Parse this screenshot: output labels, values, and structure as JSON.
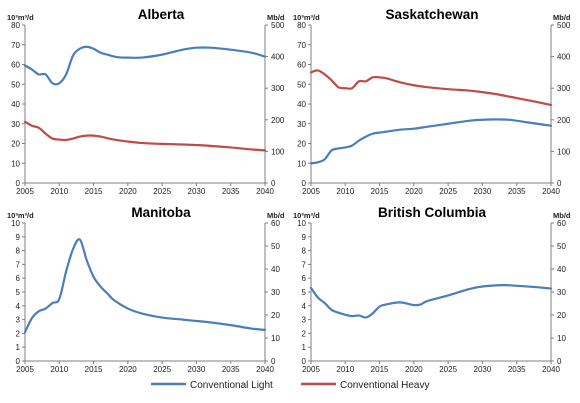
{
  "chart_data": [
    {
      "type": "line",
      "title": "Alberta",
      "left_unit": "10³m³/d",
      "right_unit": "Mb/d",
      "xlim": [
        2005,
        2040
      ],
      "x_ticks": [
        "2005",
        "2010",
        "2015",
        "2020",
        "2025",
        "2030",
        "2035",
        "2040"
      ],
      "ylim_left": [
        0,
        80
      ],
      "y_ticks_left": [
        "0",
        "10",
        "20",
        "30",
        "40",
        "50",
        "60",
        "70",
        "80"
      ],
      "ylim_right": [
        0,
        500
      ],
      "y_ticks_right": [
        "0",
        "100",
        "200",
        "300",
        "400",
        "500"
      ],
      "series": [
        {
          "name": "Conventional Light",
          "color": "#4a7ebb",
          "x": [
            2005,
            2006,
            2007,
            2008,
            2009,
            2010,
            2011,
            2012,
            2013,
            2014,
            2015,
            2016,
            2017,
            2018,
            2019,
            2020,
            2022,
            2025,
            2028,
            2030,
            2032,
            2035,
            2038,
            2040
          ],
          "y": [
            59.5,
            57.5,
            55,
            55,
            50.5,
            50.5,
            55,
            64.5,
            68,
            69,
            68,
            66,
            65,
            64,
            63.5,
            63.5,
            63.5,
            65,
            67.5,
            68.5,
            68.5,
            67.5,
            66,
            64
          ]
        },
        {
          "name": "Conventional Heavy",
          "color": "#be4b48",
          "x": [
            2005,
            2006,
            2007,
            2008,
            2009,
            2010,
            2011,
            2012,
            2013,
            2014,
            2015,
            2016,
            2018,
            2020,
            2022,
            2025,
            2028,
            2030,
            2032,
            2035,
            2038,
            2040
          ],
          "y": [
            31,
            29,
            28,
            25,
            22.5,
            22,
            21.8,
            22.5,
            23.5,
            24,
            24,
            23.5,
            22,
            21,
            20.3,
            19.8,
            19.5,
            19.2,
            18.8,
            18,
            17,
            16.5
          ]
        }
      ]
    },
    {
      "type": "line",
      "title": "Saskatchewan",
      "left_unit": "10³m³/d",
      "right_unit": "Mb/d",
      "xlim": [
        2005,
        2040
      ],
      "x_ticks": [
        "2005",
        "2010",
        "2015",
        "2020",
        "2025",
        "2030",
        "2035",
        "2040"
      ],
      "ylim_left": [
        0,
        80
      ],
      "y_ticks_left": [
        "0",
        "10",
        "20",
        "30",
        "40",
        "50",
        "60",
        "70",
        "80"
      ],
      "ylim_right": [
        0,
        500
      ],
      "y_ticks_right": [
        "0",
        "100",
        "200",
        "300",
        "400",
        "500"
      ],
      "series": [
        {
          "name": "Conventional Light",
          "color": "#4a7ebb",
          "x": [
            2005,
            2006,
            2007,
            2008,
            2009,
            2010,
            2011,
            2012,
            2013,
            2014,
            2015,
            2016,
            2018,
            2020,
            2022,
            2025,
            2028,
            2030,
            2032,
            2034,
            2036,
            2038,
            2040
          ],
          "y": [
            10,
            10.5,
            12,
            16.5,
            17.5,
            18,
            19,
            21.5,
            23.5,
            25,
            25.5,
            26,
            27,
            27.5,
            28.5,
            30,
            31.5,
            32,
            32.2,
            32,
            31,
            30,
            29
          ]
        },
        {
          "name": "Conventional Heavy",
          "color": "#be4b48",
          "x": [
            2005,
            2006,
            2007,
            2008,
            2009,
            2010,
            2011,
            2012,
            2013,
            2014,
            2015,
            2016,
            2018,
            2020,
            2022,
            2025,
            2028,
            2030,
            2032,
            2035,
            2038,
            2040
          ],
          "y": [
            56,
            57,
            55,
            52,
            48.5,
            48,
            48,
            51.5,
            51.5,
            53.5,
            53.5,
            53,
            51,
            49.5,
            48.5,
            47.5,
            46.8,
            46,
            45,
            43,
            41,
            39.5
          ]
        }
      ]
    },
    {
      "type": "line",
      "title": "Manitoba",
      "left_unit": "10³m³/d",
      "right_unit": "Mb/d",
      "xlim": [
        2005,
        2040
      ],
      "x_ticks": [
        "2005",
        "2010",
        "2015",
        "2020",
        "2025",
        "2030",
        "2035",
        "2040"
      ],
      "ylim_left": [
        0,
        10
      ],
      "y_ticks_left": [
        "0",
        "1",
        "2",
        "3",
        "4",
        "5",
        "6",
        "7",
        "8",
        "9",
        "10"
      ],
      "ylim_right": [
        0,
        60
      ],
      "y_ticks_right": [
        "0",
        "10",
        "20",
        "30",
        "40",
        "50",
        "60"
      ],
      "series": [
        {
          "name": "Conventional Light",
          "color": "#4a7ebb",
          "x": [
            2005,
            2006,
            2007,
            2008,
            2009,
            2010,
            2011,
            2012,
            2013,
            2014,
            2015,
            2016,
            2017,
            2018,
            2020,
            2022,
            2025,
            2028,
            2030,
            2032,
            2035,
            2038,
            2040
          ],
          "y": [
            2.1,
            3.1,
            3.6,
            3.8,
            4.2,
            4.5,
            6.5,
            8.1,
            8.8,
            7.3,
            6.1,
            5.4,
            4.9,
            4.4,
            3.8,
            3.45,
            3.15,
            3.0,
            2.9,
            2.8,
            2.6,
            2.35,
            2.25
          ]
        }
      ]
    },
    {
      "type": "line",
      "title": "British Columbia",
      "left_unit": "10³m³/d",
      "right_unit": "Mb/d",
      "xlim": [
        2005,
        2040
      ],
      "x_ticks": [
        "2005",
        "2010",
        "2015",
        "2020",
        "2025",
        "2030",
        "2035",
        "2040"
      ],
      "ylim_left": [
        0,
        10
      ],
      "y_ticks_left": [
        "0",
        "1",
        "2",
        "3",
        "4",
        "5",
        "6",
        "7",
        "8",
        "9",
        "10"
      ],
      "ylim_right": [
        0,
        60
      ],
      "y_ticks_right": [
        "0",
        "10",
        "20",
        "30",
        "40",
        "50",
        "60"
      ],
      "series": [
        {
          "name": "Conventional Light",
          "color": "#4a7ebb",
          "x": [
            2005,
            2006,
            2007,
            2008,
            2009,
            2010,
            2011,
            2012,
            2013,
            2014,
            2015,
            2016,
            2018,
            2020,
            2021,
            2022,
            2025,
            2028,
            2030,
            2033,
            2035,
            2038,
            2040
          ],
          "y": [
            5.3,
            4.6,
            4.2,
            3.7,
            3.5,
            3.35,
            3.25,
            3.3,
            3.15,
            3.45,
            3.95,
            4.1,
            4.25,
            4.05,
            4.1,
            4.35,
            4.75,
            5.2,
            5.4,
            5.5,
            5.45,
            5.35,
            5.25
          ]
        }
      ]
    }
  ],
  "legend": [
    {
      "label": "Conventional Light",
      "color": "#4a7ebb"
    },
    {
      "label": "Conventional Heavy",
      "color": "#be4b48"
    }
  ]
}
